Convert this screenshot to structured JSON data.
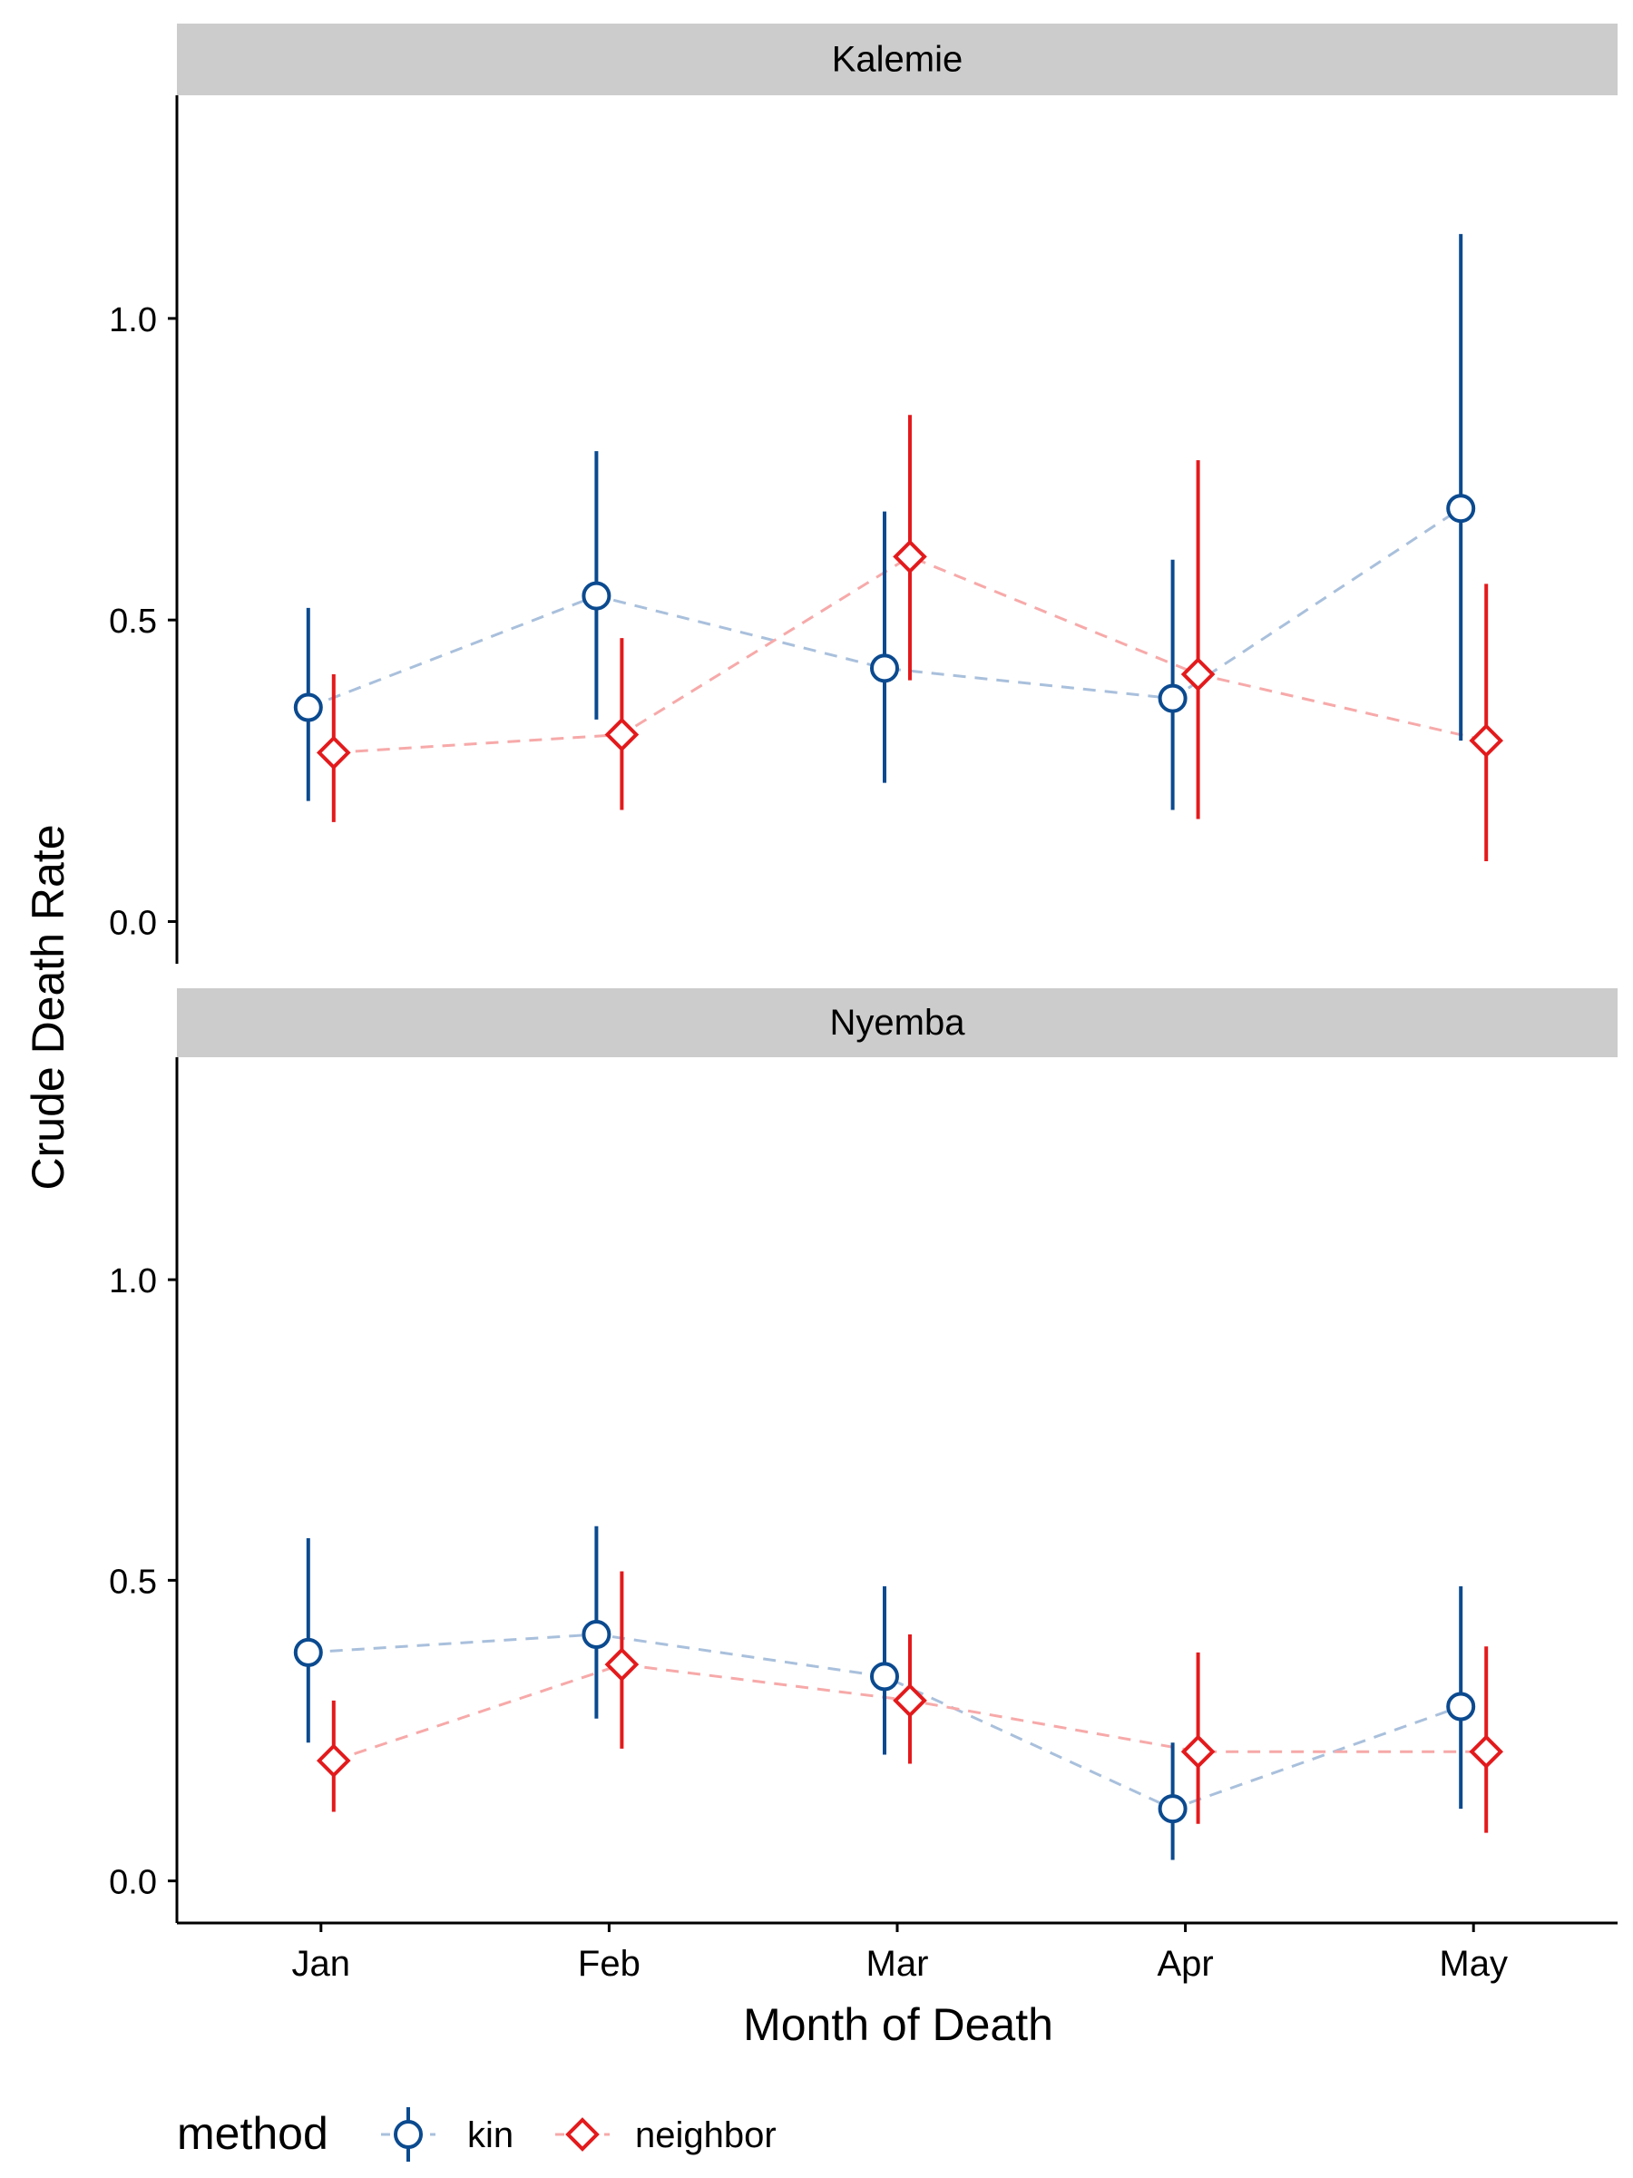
{
  "chart_data": {
    "type": "scatter",
    "title": "",
    "xlabel": "Month of Death",
    "ylabel": "Crude Death Rate",
    "categories": [
      "Jan",
      "Feb",
      "Mar",
      "Apr",
      "May"
    ],
    "ylim": [
      -0.07,
      1.37
    ],
    "yticks": [
      0.0,
      0.5,
      1.0
    ],
    "ytick_labels": [
      "0.0",
      "0.5",
      "1.0"
    ],
    "grid": false,
    "legend": {
      "position": "bottom",
      "title": "method",
      "entries": [
        "kin",
        "neighbor"
      ]
    },
    "series_styles": {
      "kin": {
        "color": "#0b4a8f",
        "line_color": "#a9c0dc",
        "marker": "circle"
      },
      "neighbor": {
        "color": "#e31a1c",
        "line_color": "#f7a9a9",
        "marker": "diamond"
      }
    },
    "panels": [
      {
        "facet": "Kalemie",
        "series": [
          {
            "name": "kin",
            "values": [
              0.355,
              0.54,
              0.42,
              0.37,
              0.685
            ],
            "lower": [
              0.2,
              0.335,
              0.23,
              0.185,
              0.3
            ],
            "upper": [
              0.52,
              0.78,
              0.68,
              0.6,
              1.14
            ]
          },
          {
            "name": "neighbor",
            "values": [
              0.28,
              0.31,
              0.605,
              0.41,
              0.3
            ],
            "lower": [
              0.165,
              0.185,
              0.4,
              0.17,
              0.1
            ],
            "upper": [
              0.41,
              0.47,
              0.84,
              0.765,
              0.56
            ]
          }
        ]
      },
      {
        "facet": "Nyemba",
        "series": [
          {
            "name": "kin",
            "values": [
              0.38,
              0.41,
              0.34,
              0.12,
              0.29
            ],
            "lower": [
              0.23,
              0.27,
              0.21,
              0.035,
              0.12
            ],
            "upper": [
              0.57,
              0.59,
              0.49,
              0.23,
              0.49
            ]
          },
          {
            "name": "neighbor",
            "values": [
              0.2,
              0.36,
              0.3,
              0.215,
              0.215
            ],
            "lower": [
              0.115,
              0.22,
              0.195,
              0.095,
              0.08
            ],
            "upper": [
              0.3,
              0.515,
              0.41,
              0.38,
              0.39
            ]
          }
        ]
      }
    ]
  }
}
